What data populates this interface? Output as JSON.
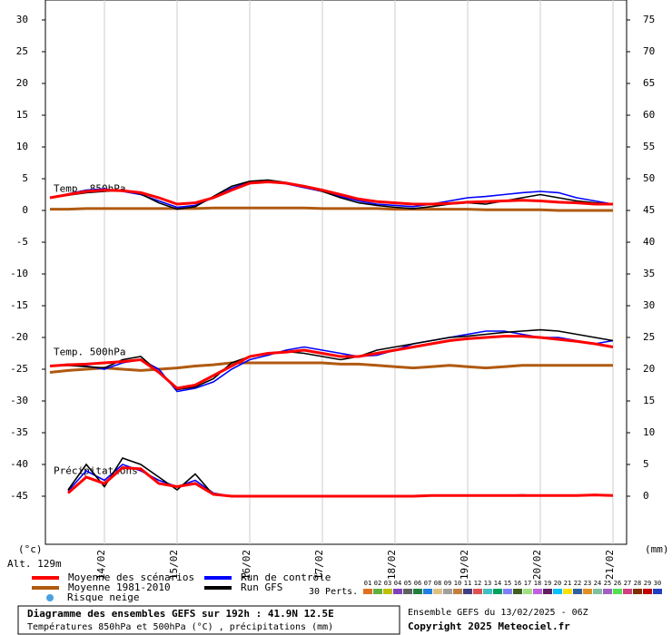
{
  "chart_data": {
    "type": "line",
    "title": "Diagramme des ensembles GEFS sur 192h : 41.9N 12.5E",
    "subtitle": "Températures 850hPa et 500hPa (°C) , précipitations (mm)",
    "run_label": "Ensemble GEFS du 13/02/2025 - 06Z",
    "copyright": "Copyright 2025 Meteociel.fr",
    "y_label": "(°c)",
    "y2_label": "(mm)",
    "altitude": "Alt. 129m",
    "xlim": [
      4.5,
      196.5
    ],
    "xticks": [
      {
        "value": 24,
        "label": "14/02"
      },
      {
        "value": 48,
        "label": "15/02"
      },
      {
        "value": 72,
        "label": "16/02"
      },
      {
        "value": 96,
        "label": "17/02"
      },
      {
        "value": 120,
        "label": "18/02"
      },
      {
        "value": 144,
        "label": "19/02"
      },
      {
        "value": 168,
        "label": "20/02"
      },
      {
        "value": 192,
        "label": "21/02"
      }
    ],
    "x": [
      6,
      12,
      18,
      24,
      30,
      36,
      42,
      48,
      54,
      60,
      66,
      72,
      78,
      84,
      90,
      96,
      102,
      108,
      114,
      120,
      126,
      132,
      138,
      144,
      150,
      156,
      162,
      168,
      174,
      180,
      186,
      192
    ],
    "ylim": [
      -52.57,
      33.14
    ],
    "yticks": [
      30,
      25,
      20,
      15,
      10,
      5,
      0,
      -5,
      -10,
      -15,
      -20,
      -25,
      -30,
      -35,
      -40,
      -45
    ],
    "y2lim": [
      -7.57,
      78.14
    ],
    "y2ticks": [
      75,
      70,
      65,
      60,
      55,
      50,
      45,
      40,
      35,
      30,
      25,
      20,
      15,
      10,
      5,
      0
    ],
    "grid": true,
    "legend": [
      {
        "label": "Moyenne des scénarios",
        "color": "#ff0000"
      },
      {
        "label": "Moyenne 1981-2010",
        "color": "#b05a10"
      },
      {
        "label": "Risque neige",
        "color": "#4aa0e0"
      },
      {
        "label": "Run de contrôle",
        "color": "#0000ff"
      },
      {
        "label": "Run GFS",
        "color": "#000000"
      }
    ],
    "perts_label": "30 Perts.",
    "perts": [
      {
        "label": "01",
        "color": "#e07020"
      },
      {
        "label": "02",
        "color": "#60b040"
      },
      {
        "label": "03",
        "color": "#c0c000"
      },
      {
        "label": "04",
        "color": "#8040c0"
      },
      {
        "label": "05",
        "color": "#606060"
      },
      {
        "label": "06",
        "color": "#208040"
      },
      {
        "label": "07",
        "color": "#2080e0"
      },
      {
        "label": "08",
        "color": "#e0c080"
      },
      {
        "label": "09",
        "color": "#a0a0a0"
      },
      {
        "label": "10",
        "color": "#c08040"
      },
      {
        "label": "11",
        "color": "#404080"
      },
      {
        "label": "12",
        "color": "#e05050"
      },
      {
        "label": "13",
        "color": "#40c0c0"
      },
      {
        "label": "14",
        "color": "#00a060"
      },
      {
        "label": "15",
        "color": "#8080ff"
      },
      {
        "label": "16",
        "color": "#406020"
      },
      {
        "label": "17",
        "color": "#a0e080"
      },
      {
        "label": "18",
        "color": "#c060e0"
      },
      {
        "label": "19",
        "color": "#602060"
      },
      {
        "label": "20",
        "color": "#00c0ff"
      },
      {
        "label": "21",
        "color": "#ffe000"
      },
      {
        "label": "22",
        "color": "#3060a0"
      },
      {
        "label": "23",
        "color": "#e09020"
      },
      {
        "label": "24",
        "color": "#80c0a0"
      },
      {
        "label": "25",
        "color": "#a060c0"
      },
      {
        "label": "26",
        "color": "#50e050"
      },
      {
        "label": "27",
        "color": "#d04080"
      },
      {
        "label": "28",
        "color": "#803000"
      },
      {
        "label": "29",
        "color": "#c00000"
      },
      {
        "label": "30",
        "color": "#2040c0"
      }
    ],
    "groups": [
      {
        "label": "Temp. 850hPa",
        "axis": "y",
        "series": [
          {
            "color": "#b05a10",
            "values": [
              0.2,
              0.2,
              0.3,
              0.3,
              0.3,
              0.3,
              0.3,
              0.3,
              0.3,
              0.4,
              0.4,
              0.4,
              0.4,
              0.4,
              0.4,
              0.3,
              0.3,
              0.3,
              0.3,
              0.2,
              0.2,
              0.2,
              0.2,
              0.2,
              0.1,
              0.1,
              0.1,
              0.1,
              0.0,
              0.0,
              0.0,
              0.0
            ]
          },
          {
            "color": "#0000ff",
            "values": [
              2.0,
              2.6,
              3.2,
              3.4,
              3.0,
              2.5,
              1.5,
              0.5,
              0.8,
              2.0,
              3.5,
              4.5,
              4.6,
              4.2,
              3.6,
              3.0,
              2.2,
              1.5,
              1.0,
              0.8,
              0.6,
              1.0,
              1.5,
              2.0,
              2.2,
              2.5,
              2.8,
              3.0,
              2.8,
              2.0,
              1.5,
              1.0
            ]
          },
          {
            "color": "#000000",
            "values": [
              2.0,
              2.4,
              2.8,
              3.0,
              3.2,
              2.6,
              1.2,
              0.2,
              0.6,
              2.2,
              3.8,
              4.6,
              4.8,
              4.4,
              3.8,
              3.0,
              2.0,
              1.2,
              0.8,
              0.5,
              0.3,
              0.6,
              1.0,
              1.2,
              1.0,
              1.5,
              2.0,
              2.5,
              2.0,
              1.5,
              1.2,
              1.0
            ]
          },
          {
            "color": "#ff0000",
            "values": [
              2.0,
              2.5,
              3.0,
              3.2,
              3.1,
              2.8,
              2.0,
              1.0,
              1.2,
              2.0,
              3.2,
              4.3,
              4.5,
              4.3,
              3.8,
              3.2,
              2.5,
              1.8,
              1.4,
              1.2,
              1.0,
              1.0,
              1.1,
              1.3,
              1.4,
              1.5,
              1.6,
              1.5,
              1.3,
              1.2,
              1.0,
              1.0
            ]
          }
        ]
      },
      {
        "label": "Temp. 500hPa",
        "axis": "y",
        "series": [
          {
            "color": "#b05a10",
            "values": [
              -25.5,
              -25.2,
              -25.0,
              -24.8,
              -25.0,
              -25.2,
              -25.0,
              -24.8,
              -24.5,
              -24.3,
              -24.0,
              -24.0,
              -24.0,
              -24.0,
              -24.0,
              -24.0,
              -24.2,
              -24.2,
              -24.4,
              -24.6,
              -24.8,
              -24.6,
              -24.4,
              -24.6,
              -24.8,
              -24.6,
              -24.4,
              -24.4,
              -24.4,
              -24.4,
              -24.4,
              -24.4
            ]
          },
          {
            "color": "#0000ff",
            "values": [
              -24.5,
              -24.2,
              -24.5,
              -25.0,
              -24.0,
              -23.5,
              -25.0,
              -28.5,
              -28.0,
              -27.0,
              -25.0,
              -23.5,
              -22.8,
              -22.0,
              -21.5,
              -22.0,
              -22.5,
              -23.0,
              -22.8,
              -22.0,
              -21.0,
              -20.5,
              -20.0,
              -19.5,
              -19.0,
              -19.0,
              -19.5,
              -20.0,
              -20.0,
              -20.5,
              -21.0,
              -20.5
            ]
          },
          {
            "color": "#000000",
            "values": [
              -24.5,
              -24.4,
              -24.6,
              -24.8,
              -23.5,
              -23.0,
              -25.5,
              -28.2,
              -27.8,
              -26.5,
              -24.0,
              -23.0,
              -22.5,
              -22.2,
              -22.5,
              -23.0,
              -23.5,
              -23.0,
              -22.0,
              -21.5,
              -21.0,
              -20.5,
              -20.0,
              -19.8,
              -19.5,
              -19.2,
              -19.0,
              -18.8,
              -19.0,
              -19.5,
              -20.0,
              -20.5
            ]
          },
          {
            "color": "#ff0000",
            "values": [
              -24.5,
              -24.3,
              -24.2,
              -24.0,
              -23.8,
              -23.5,
              -25.5,
              -28.0,
              -27.5,
              -26.0,
              -24.5,
              -23.0,
              -22.5,
              -22.3,
              -22.0,
              -22.5,
              -23.0,
              -23.0,
              -22.5,
              -22.0,
              -21.5,
              -21.0,
              -20.5,
              -20.2,
              -20.0,
              -19.8,
              -19.8,
              -20.0,
              -20.3,
              -20.6,
              -21.0,
              -21.5
            ]
          }
        ]
      },
      {
        "label": "Précipitations",
        "axis": "y2",
        "series": [
          {
            "color": "#0000ff",
            "values": [
              null,
              0.8,
              4,
              2.5,
              5,
              4,
              2.5,
              1.5,
              2.5,
              0.5,
              0,
              0,
              0,
              0,
              0,
              0,
              0,
              0,
              0,
              0,
              0,
              0.1,
              0.1,
              0.1,
              0.1,
              0.1,
              0.1,
              0.1,
              0.1,
              0.1,
              0.2,
              0.1
            ]
          },
          {
            "color": "#000000",
            "values": [
              null,
              1,
              5,
              1.5,
              6,
              5,
              3,
              1,
              3.5,
              0.2,
              0,
              0,
              0,
              0,
              0,
              0,
              0,
              0,
              0,
              0,
              0,
              0.1,
              0.1,
              0.1,
              0.1,
              0.1,
              0.2,
              0.1,
              0.1,
              0.1,
              0.2,
              0.1
            ]
          },
          {
            "color": "#ff0000",
            "values": [
              null,
              0.5,
              3,
              2,
              4.5,
              4.3,
              2,
              1.5,
              2,
              0.3,
              0,
              0,
              0,
              0,
              0,
              0,
              0,
              0,
              0,
              0,
              0,
              0.1,
              0.1,
              0.1,
              0.1,
              0.1,
              0.1,
              0.1,
              0.1,
              0.1,
              0.2,
              0.1
            ]
          }
        ]
      }
    ]
  }
}
